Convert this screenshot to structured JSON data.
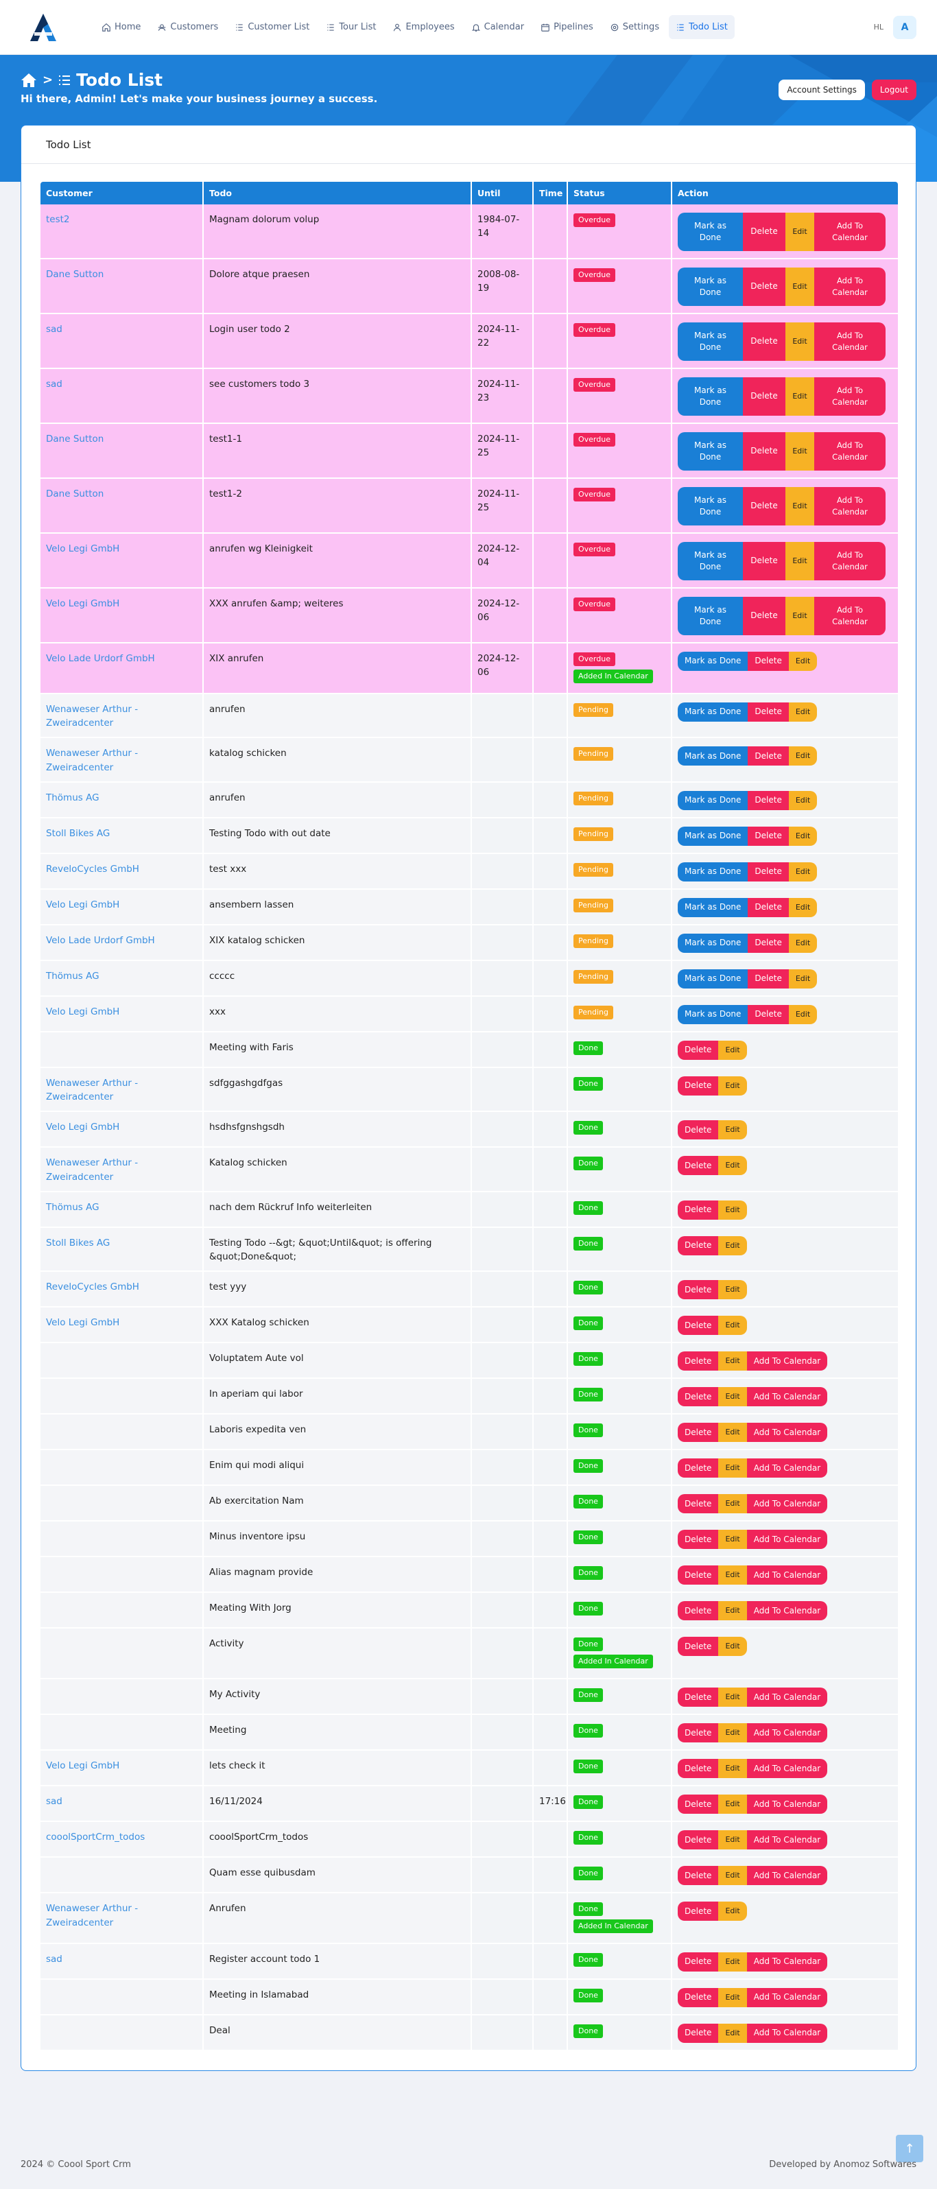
{
  "nav": {
    "items": [
      {
        "label": "Home",
        "icon": "home-icon"
      },
      {
        "label": "Customers",
        "icon": "customers-icon"
      },
      {
        "label": "Customer List",
        "icon": "list-icon"
      },
      {
        "label": "Tour List",
        "icon": "list-icon"
      },
      {
        "label": "Employees",
        "icon": "user-icon"
      },
      {
        "label": "Calendar",
        "icon": "bell-icon"
      },
      {
        "label": "Pipelines",
        "icon": "calendar-icon"
      },
      {
        "label": "Settings",
        "icon": "gear-icon"
      },
      {
        "label": "Todo List",
        "icon": "list-icon"
      }
    ],
    "lang": "HL",
    "avatar": "A"
  },
  "hero": {
    "title": "Todo List",
    "greeting": "Hi there, Admin! Let's make your business journey a success.",
    "account_settings": "Account Settings",
    "logout": "Logout"
  },
  "card": {
    "title": "Todo List"
  },
  "table": {
    "headers": [
      "Customer",
      "Todo",
      "Until",
      "Time",
      "Status",
      "Action"
    ],
    "rows": [
      {
        "customer": "test2",
        "todo": "Magnam dolorum volup",
        "until": "1984-07-14",
        "time": "",
        "status": "Overdue",
        "calendar": false,
        "actions": "full"
      },
      {
        "customer": "Dane Sutton",
        "todo": "Dolore atque praesen",
        "until": "2008-08-19",
        "time": "",
        "status": "Overdue",
        "calendar": false,
        "actions": "full"
      },
      {
        "customer": "sad",
        "todo": "Login user todo 2",
        "until": "2024-11-22",
        "time": "",
        "status": "Overdue",
        "calendar": false,
        "actions": "full"
      },
      {
        "customer": "sad",
        "todo": "see customers todo 3",
        "until": "2024-11-23",
        "time": "",
        "status": "Overdue",
        "calendar": false,
        "actions": "full"
      },
      {
        "customer": "Dane Sutton",
        "todo": "test1-1",
        "until": "2024-11-25",
        "time": "",
        "status": "Overdue",
        "calendar": false,
        "actions": "full"
      },
      {
        "customer": "Dane Sutton",
        "todo": "test1-2",
        "until": "2024-11-25",
        "time": "",
        "status": "Overdue",
        "calendar": false,
        "actions": "full"
      },
      {
        "customer": "Velo Legi GmbH",
        "todo": "anrufen wg Kleinigkeit",
        "until": "2024-12-04",
        "time": "",
        "status": "Overdue",
        "calendar": false,
        "actions": "full"
      },
      {
        "customer": "Velo Legi GmbH",
        "todo": "XXX anrufen &amp; weiteres",
        "until": "2024-12-06",
        "time": "",
        "status": "Overdue",
        "calendar": false,
        "actions": "full"
      },
      {
        "customer": "Velo Lade Urdorf GmbH",
        "todo": "XIX anrufen",
        "until": "2024-12-06",
        "time": "",
        "status": "Overdue",
        "calendar": true,
        "actions": "done"
      },
      {
        "customer": "Wenaweser Arthur - Zweiradcenter",
        "todo": "anrufen",
        "until": "",
        "time": "",
        "status": "Pending",
        "calendar": false,
        "actions": "done"
      },
      {
        "customer": "Wenaweser Arthur - Zweiradcenter",
        "todo": "katalog schicken",
        "until": "",
        "time": "",
        "status": "Pending",
        "calendar": false,
        "actions": "done"
      },
      {
        "customer": "Thömus AG",
        "todo": "anrufen",
        "until": "",
        "time": "",
        "status": "Pending",
        "calendar": false,
        "actions": "done"
      },
      {
        "customer": "Stoll Bikes AG",
        "todo": "Testing Todo with out date",
        "until": "",
        "time": "",
        "status": "Pending",
        "calendar": false,
        "actions": "done"
      },
      {
        "customer": "ReveloCycles GmbH",
        "todo": "test xxx",
        "until": "",
        "time": "",
        "status": "Pending",
        "calendar": false,
        "actions": "done"
      },
      {
        "customer": "Velo Legi GmbH",
        "todo": "ansembern lassen",
        "until": "",
        "time": "",
        "status": "Pending",
        "calendar": false,
        "actions": "done"
      },
      {
        "customer": "Velo Lade Urdorf GmbH",
        "todo": "XIX katalog schicken",
        "until": "",
        "time": "",
        "status": "Pending",
        "calendar": false,
        "actions": "done"
      },
      {
        "customer": "Thömus AG",
        "todo": "ccccc",
        "until": "",
        "time": "",
        "status": "Pending",
        "calendar": false,
        "actions": "done"
      },
      {
        "customer": "Velo Legi GmbH",
        "todo": "xxx",
        "until": "",
        "time": "",
        "status": "Pending",
        "calendar": false,
        "actions": "done"
      },
      {
        "customer": "",
        "todo": "Meeting with Faris",
        "until": "",
        "time": "",
        "status": "Done",
        "calendar": false,
        "actions": "edit"
      },
      {
        "customer": "Wenaweser Arthur - Zweiradcenter",
        "todo": "sdfggashgdfgas",
        "until": "",
        "time": "",
        "status": "Done",
        "calendar": false,
        "actions": "edit"
      },
      {
        "customer": "Velo Legi GmbH",
        "todo": "hsdhsfgnshgsdh",
        "until": "",
        "time": "",
        "status": "Done",
        "calendar": false,
        "actions": "edit"
      },
      {
        "customer": "Wenaweser Arthur - Zweiradcenter",
        "todo": "Katalog schicken",
        "until": "",
        "time": "",
        "status": "Done",
        "calendar": false,
        "actions": "edit"
      },
      {
        "customer": "Thömus AG",
        "todo": "nach dem Rückruf Info weiterleiten",
        "until": "",
        "time": "",
        "status": "Done",
        "calendar": false,
        "actions": "edit"
      },
      {
        "customer": "Stoll Bikes AG",
        "todo": "Testing Todo --&gt; &quot;Until&quot; is offering &quot;Done&quot;",
        "until": "",
        "time": "",
        "status": "Done",
        "calendar": false,
        "actions": "edit"
      },
      {
        "customer": "ReveloCycles GmbH",
        "todo": "test yyy",
        "until": "",
        "time": "",
        "status": "Done",
        "calendar": false,
        "actions": "edit"
      },
      {
        "customer": "Velo Legi GmbH",
        "todo": "XXX Katalog schicken",
        "until": "",
        "time": "",
        "status": "Done",
        "calendar": false,
        "actions": "edit"
      },
      {
        "customer": "",
        "todo": "Voluptatem Aute vol",
        "until": "",
        "time": "",
        "status": "Done",
        "calendar": false,
        "actions": "cal"
      },
      {
        "customer": "",
        "todo": "In aperiam qui labor",
        "until": "",
        "time": "",
        "status": "Done",
        "calendar": false,
        "actions": "cal"
      },
      {
        "customer": "",
        "todo": "Laboris expedita ven",
        "until": "",
        "time": "",
        "status": "Done",
        "calendar": false,
        "actions": "cal"
      },
      {
        "customer": "",
        "todo": "Enim qui modi aliqui",
        "until": "",
        "time": "",
        "status": "Done",
        "calendar": false,
        "actions": "cal"
      },
      {
        "customer": "",
        "todo": "Ab exercitation Nam",
        "until": "",
        "time": "",
        "status": "Done",
        "calendar": false,
        "actions": "cal"
      },
      {
        "customer": "",
        "todo": "Minus inventore ipsu",
        "until": "",
        "time": "",
        "status": "Done",
        "calendar": false,
        "actions": "cal"
      },
      {
        "customer": "",
        "todo": "Alias magnam provide",
        "until": "",
        "time": "",
        "status": "Done",
        "calendar": false,
        "actions": "cal"
      },
      {
        "customer": "",
        "todo": "Meating With Jorg",
        "until": "",
        "time": "",
        "status": "Done",
        "calendar": false,
        "actions": "cal"
      },
      {
        "customer": "",
        "todo": "Activity",
        "until": "",
        "time": "",
        "status": "Done",
        "calendar": true,
        "actions": "edit"
      },
      {
        "customer": "",
        "todo": "My Activity",
        "until": "",
        "time": "",
        "status": "Done",
        "calendar": false,
        "actions": "cal"
      },
      {
        "customer": "",
        "todo": "Meeting",
        "until": "",
        "time": "",
        "status": "Done",
        "calendar": false,
        "actions": "cal"
      },
      {
        "customer": "Velo Legi GmbH",
        "todo": "lets check it",
        "until": "",
        "time": "",
        "status": "Done",
        "calendar": false,
        "actions": "cal"
      },
      {
        "customer": "sad",
        "todo": "16/11/2024",
        "until": "",
        "time": "17:16",
        "status": "Done",
        "calendar": false,
        "actions": "cal"
      },
      {
        "customer": "cooolSportCrm_todos",
        "todo": "cooolSportCrm_todos",
        "until": "",
        "time": "",
        "status": "Done",
        "calendar": false,
        "actions": "cal"
      },
      {
        "customer": "",
        "todo": "Quam esse quibusdam",
        "until": "",
        "time": "",
        "status": "Done",
        "calendar": false,
        "actions": "cal"
      },
      {
        "customer": "Wenaweser Arthur - Zweiradcenter",
        "todo": "Anrufen",
        "until": "",
        "time": "",
        "status": "Done",
        "calendar": true,
        "actions": "edit"
      },
      {
        "customer": "sad",
        "todo": "Register account todo 1",
        "until": "",
        "time": "",
        "status": "Done",
        "calendar": false,
        "actions": "cal"
      },
      {
        "customer": "",
        "todo": "Meeting in Islamabad",
        "until": "",
        "time": "",
        "status": "Done",
        "calendar": false,
        "actions": "cal"
      },
      {
        "customer": "",
        "todo": "Deal",
        "until": "",
        "time": "",
        "status": "Done",
        "calendar": false,
        "actions": "cal"
      }
    ]
  },
  "labels": {
    "mark_done": "Mark as Done",
    "delete": "Delete",
    "edit": "Edit",
    "add_calendar": "Add To Calendar",
    "added_calendar": "Added In Calendar"
  },
  "footer": {
    "left": "2024 © Coool Sport Crm",
    "right": "Developed by Anomoz Softwares"
  },
  "scroll_top": "↑",
  "colors": {
    "primary": "#1a7fd6",
    "danger": "#f0245a",
    "warning": "#f7a825",
    "success": "#18c71b",
    "overdue_row": "#fbc2f5"
  }
}
